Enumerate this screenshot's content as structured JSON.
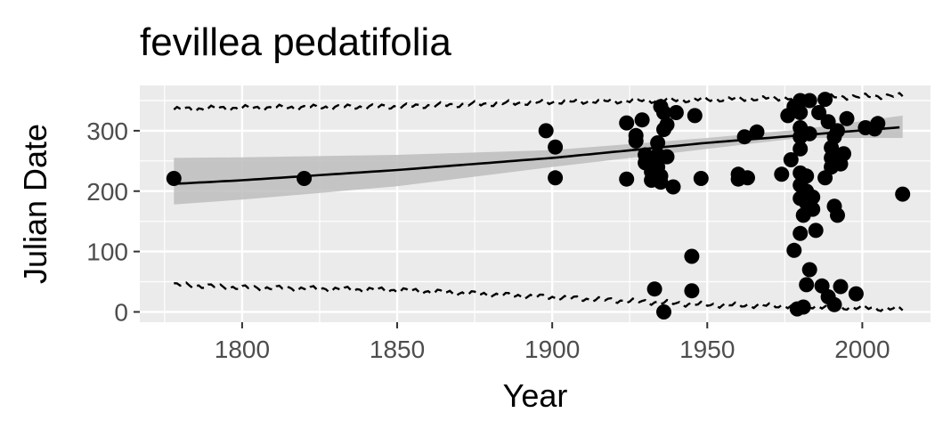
{
  "chart_data": {
    "type": "scatter",
    "title": "fevillea pedatifolia",
    "xlabel": "Year",
    "ylabel": "Julian Date",
    "xlim": [
      1767,
      2022
    ],
    "ylim": [
      -17,
      375
    ],
    "x_ticks": [
      1800,
      1850,
      1900,
      1950,
      2000
    ],
    "y_ticks": [
      0,
      100,
      200,
      300
    ],
    "grid": true,
    "panel_background": "#ebebeb",
    "grid_color": "#ffffff",
    "point_color": "#000000",
    "ribbon_color": "#bdbdbd",
    "points": [
      [
        1778,
        221
      ],
      [
        1820,
        221
      ],
      [
        1898,
        300
      ],
      [
        1901,
        273
      ],
      [
        1901,
        222
      ],
      [
        1924,
        313
      ],
      [
        1924,
        220
      ],
      [
        1927,
        292
      ],
      [
        1927,
        283
      ],
      [
        1929,
        318
      ],
      [
        1930,
        260
      ],
      [
        1930,
        247
      ],
      [
        1931,
        252
      ],
      [
        1932,
        232
      ],
      [
        1932,
        218
      ],
      [
        1933,
        38
      ],
      [
        1934,
        280
      ],
      [
        1934,
        260
      ],
      [
        1934,
        240
      ],
      [
        1935,
        225
      ],
      [
        1935,
        215
      ],
      [
        1935,
        340
      ],
      [
        1936,
        330
      ],
      [
        1936,
        302
      ],
      [
        1936,
        0
      ],
      [
        1937,
        257
      ],
      [
        1937,
        310
      ],
      [
        1939,
        207
      ],
      [
        1940,
        330
      ],
      [
        1945,
        92
      ],
      [
        1945,
        35
      ],
      [
        1946,
        325
      ],
      [
        1948,
        221
      ],
      [
        1960,
        228
      ],
      [
        1960,
        220
      ],
      [
        1962,
        290
      ],
      [
        1963,
        222
      ],
      [
        1966,
        298
      ],
      [
        1974,
        228
      ],
      [
        1976,
        325
      ],
      [
        1977,
        252
      ],
      [
        1978,
        340
      ],
      [
        1978,
        102
      ],
      [
        1979,
        5
      ],
      [
        1980,
        350
      ],
      [
        1980,
        330
      ],
      [
        1980,
        305
      ],
      [
        1980,
        290
      ],
      [
        1980,
        270
      ],
      [
        1980,
        230
      ],
      [
        1980,
        210
      ],
      [
        1980,
        188
      ],
      [
        1980,
        130
      ],
      [
        1981,
        160
      ],
      [
        1981,
        8
      ],
      [
        1982,
        225
      ],
      [
        1982,
        200
      ],
      [
        1982,
        180
      ],
      [
        1982,
        45
      ],
      [
        1983,
        350
      ],
      [
        1983,
        295
      ],
      [
        1983,
        70
      ],
      [
        1984,
        190
      ],
      [
        1984,
        170
      ],
      [
        1985,
        135
      ],
      [
        1986,
        330
      ],
      [
        1987,
        43
      ],
      [
        1988,
        352
      ],
      [
        1988,
        222
      ],
      [
        1989,
        315
      ],
      [
        1989,
        25
      ],
      [
        1990,
        272
      ],
      [
        1990,
        255
      ],
      [
        1990,
        240
      ],
      [
        1991,
        290
      ],
      [
        1991,
        175
      ],
      [
        1991,
        12
      ],
      [
        1992,
        160
      ],
      [
        1992,
        300
      ],
      [
        1993,
        42
      ],
      [
        1993,
        245
      ],
      [
        1994,
        262
      ],
      [
        1995,
        320
      ],
      [
        1998,
        30
      ],
      [
        2001,
        305
      ],
      [
        2004,
        303
      ],
      [
        2005,
        312
      ],
      [
        2013,
        195
      ]
    ],
    "fit_line": [
      [
        1778,
        212
      ],
      [
        1800,
        218
      ],
      [
        1850,
        235
      ],
      [
        1900,
        255
      ],
      [
        1950,
        280
      ],
      [
        2013,
        306
      ]
    ],
    "ribbon_upper": [
      [
        1778,
        255
      ],
      [
        1800,
        256
      ],
      [
        1850,
        260
      ],
      [
        1900,
        268
      ],
      [
        1950,
        288
      ],
      [
        1980,
        302
      ],
      [
        2013,
        325
      ]
    ],
    "ribbon_lower": [
      [
        1778,
        178
      ],
      [
        1800,
        186
      ],
      [
        1850,
        208
      ],
      [
        1900,
        240
      ],
      [
        1950,
        270
      ],
      [
        1980,
        288
      ],
      [
        2013,
        288
      ]
    ],
    "upper_dashed": [
      [
        1778,
        335
      ],
      [
        1790,
        337
      ],
      [
        1850,
        340
      ],
      [
        1900,
        348
      ],
      [
        1950,
        352
      ],
      [
        1980,
        355
      ],
      [
        2013,
        358
      ]
    ],
    "lower_dashed": [
      [
        1778,
        45
      ],
      [
        1800,
        40
      ],
      [
        1850,
        36
      ],
      [
        1900,
        24
      ],
      [
        1950,
        12
      ],
      [
        1980,
        10
      ],
      [
        2013,
        5
      ]
    ]
  }
}
